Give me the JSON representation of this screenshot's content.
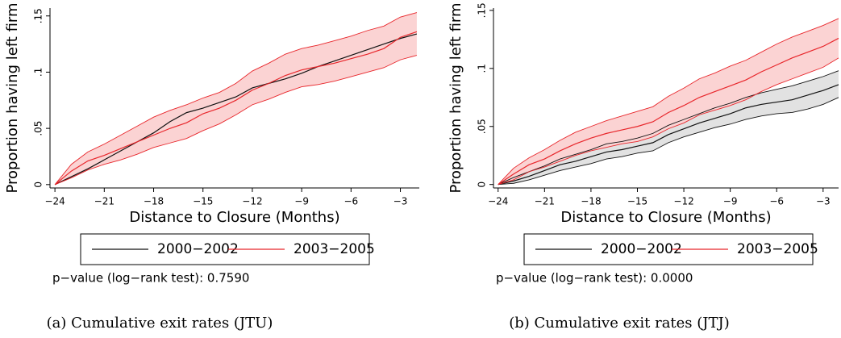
{
  "chart_data": [
    {
      "type": "line",
      "xlabel": "Distance to Closure (Months)",
      "ylabel": "Proportion having left firm",
      "note": "p−value (log−rank test): 0.7590",
      "caption": "(a) Cumulative exit rates (JTU)",
      "x": [
        -24,
        -23,
        -22,
        -21,
        -20,
        -19,
        -18,
        -17,
        -16,
        -15,
        -14,
        -13,
        -12,
        -11,
        -10,
        -9,
        -8,
        -7,
        -6,
        -5,
        -4,
        -3,
        -2
      ],
      "xlim": [
        -24.3,
        -1.85
      ],
      "xticks": [
        {
          "value": -24,
          "label": "−24"
        },
        {
          "value": -21,
          "label": "−21"
        },
        {
          "value": -18,
          "label": "−18"
        },
        {
          "value": -15,
          "label": "−15"
        },
        {
          "value": -12,
          "label": "−12"
        },
        {
          "value": -9,
          "label": "−9"
        },
        {
          "value": -6,
          "label": "−6"
        },
        {
          "value": -3,
          "label": "−3"
        }
      ],
      "ylim": [
        -0.003,
        0.157
      ],
      "yticks": [
        0,
        {
          "value": 0.05,
          "label": ".05"
        },
        {
          "value": 0.1,
          "label": ".1"
        },
        {
          "value": 0.15,
          "label": ".15"
        }
      ],
      "series": [
        {
          "name": "2000−2002",
          "color": "#111111",
          "values": [
            0,
            0.007,
            0.014,
            0.022,
            0.03,
            0.038,
            0.046,
            0.056,
            0.064,
            0.068,
            0.073,
            0.078,
            0.086,
            0.09,
            0.094,
            0.099,
            0.105,
            0.11,
            0.115,
            0.12,
            0.125,
            0.13,
            0.134
          ]
        },
        {
          "name": "2003−2005",
          "color": "#e8262b",
          "band_color": "#fbd3d3",
          "values": [
            0,
            0.012,
            0.021,
            0.026,
            0.032,
            0.038,
            0.044,
            0.05,
            0.055,
            0.063,
            0.068,
            0.075,
            0.084,
            0.09,
            0.097,
            0.102,
            0.105,
            0.108,
            0.112,
            0.116,
            0.121,
            0.131,
            0.136
          ],
          "upper": [
            0,
            0.018,
            0.029,
            0.036,
            0.044,
            0.052,
            0.06,
            0.066,
            0.071,
            0.077,
            0.082,
            0.09,
            0.101,
            0.108,
            0.116,
            0.121,
            0.124,
            0.128,
            0.132,
            0.137,
            0.141,
            0.149,
            0.153
          ],
          "lower": [
            0,
            0.006,
            0.013,
            0.018,
            0.022,
            0.027,
            0.033,
            0.037,
            0.041,
            0.048,
            0.054,
            0.062,
            0.071,
            0.076,
            0.082,
            0.087,
            0.089,
            0.092,
            0.096,
            0.1,
            0.104,
            0.111,
            0.115
          ]
        }
      ]
    },
    {
      "type": "line",
      "xlabel": "Distance to Closure (Months)",
      "ylabel": "Proportion having left firm",
      "note": "p−value (log−rank test): 0.0000",
      "caption": "(b) Cumulative exit rates (JTJ)",
      "x": [
        -24,
        -23,
        -22,
        -21,
        -20,
        -19,
        -18,
        -17,
        -16,
        -15,
        -14,
        -13,
        -12,
        -11,
        -10,
        -9,
        -8,
        -7,
        -6,
        -5,
        -4,
        -3,
        -2
      ],
      "xlim": [
        -24.3,
        -2
      ],
      "xticks": [
        {
          "value": -24,
          "label": "−24"
        },
        {
          "value": -21,
          "label": "−21"
        },
        {
          "value": -18,
          "label": "−18"
        },
        {
          "value": -15,
          "label": "−15"
        },
        {
          "value": -12,
          "label": "−12"
        },
        {
          "value": -9,
          "label": "−9"
        },
        {
          "value": -6,
          "label": "−6"
        },
        {
          "value": -3,
          "label": "−3"
        }
      ],
      "ylim": [
        -0.003,
        0.152
      ],
      "yticks": [
        0,
        {
          "value": 0.05,
          "label": ".05"
        },
        {
          "value": 0.1,
          "label": ".1"
        },
        {
          "value": 0.15,
          "label": ".15"
        }
      ],
      "series": [
        {
          "name": "2000−2002",
          "color": "#111111",
          "band_color": "#e2e2e2",
          "values": [
            0,
            0.003,
            0.007,
            0.012,
            0.017,
            0.02,
            0.024,
            0.028,
            0.03,
            0.033,
            0.036,
            0.043,
            0.048,
            0.053,
            0.057,
            0.061,
            0.066,
            0.069,
            0.071,
            0.073,
            0.077,
            0.081,
            0.086
          ],
          "upper": [
            0,
            0.006,
            0.011,
            0.016,
            0.022,
            0.026,
            0.03,
            0.035,
            0.037,
            0.04,
            0.044,
            0.051,
            0.056,
            0.061,
            0.066,
            0.07,
            0.075,
            0.079,
            0.082,
            0.085,
            0.089,
            0.093,
            0.098
          ],
          "lower": [
            0,
            0.001,
            0.004,
            0.008,
            0.012,
            0.015,
            0.018,
            0.022,
            0.024,
            0.027,
            0.029,
            0.036,
            0.041,
            0.045,
            0.049,
            0.052,
            0.056,
            0.059,
            0.061,
            0.062,
            0.065,
            0.069,
            0.075
          ]
        },
        {
          "name": "2003−2005",
          "color": "#e8262b",
          "band_color": "#fbd3d3",
          "values": [
            0,
            0.009,
            0.017,
            0.022,
            0.029,
            0.035,
            0.04,
            0.044,
            0.047,
            0.05,
            0.054,
            0.062,
            0.068,
            0.075,
            0.08,
            0.085,
            0.09,
            0.097,
            0.103,
            0.109,
            0.114,
            0.119,
            0.126
          ],
          "upper": [
            0,
            0.014,
            0.023,
            0.03,
            0.038,
            0.045,
            0.05,
            0.055,
            0.059,
            0.063,
            0.067,
            0.076,
            0.083,
            0.091,
            0.096,
            0.102,
            0.107,
            0.114,
            0.121,
            0.127,
            0.132,
            0.137,
            0.143
          ],
          "lower": [
            0,
            0.004,
            0.011,
            0.015,
            0.02,
            0.025,
            0.029,
            0.032,
            0.035,
            0.037,
            0.041,
            0.048,
            0.053,
            0.06,
            0.064,
            0.068,
            0.073,
            0.08,
            0.086,
            0.091,
            0.096,
            0.101,
            0.109
          ]
        }
      ]
    }
  ]
}
